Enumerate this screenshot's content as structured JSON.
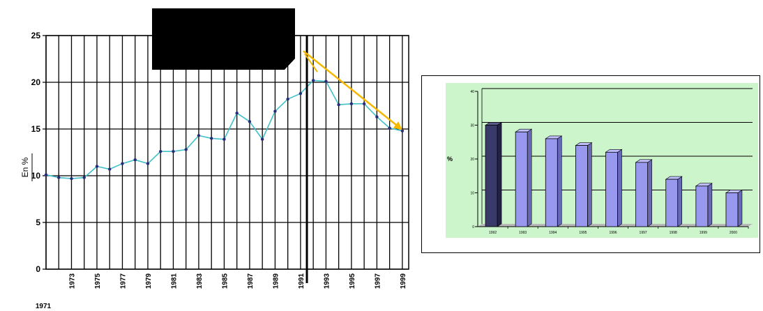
{
  "chart_data": [
    {
      "type": "line",
      "title": "",
      "xlabel": "",
      "ylabel": "En %",
      "ylim": [
        0,
        25
      ],
      "yticks": [
        "0",
        "5",
        "10",
        "15",
        "20",
        "25"
      ],
      "xticks": [
        "1971",
        "1973",
        "1975",
        "1977",
        "1979",
        "1981",
        "1983",
        "1985",
        "1987",
        "1989",
        "1991",
        "1993",
        "1995",
        "1997",
        "1999"
      ],
      "x": [
        1971,
        1972,
        1973,
        1974,
        1975,
        1976,
        1977,
        1978,
        1979,
        1980,
        1981,
        1982,
        1983,
        1984,
        1985,
        1986,
        1987,
        1988,
        1989,
        1990,
        1991,
        1992,
        1993,
        1994,
        1995,
        1996,
        1997,
        1998,
        1999
      ],
      "series": [
        {
          "values": [
            10.1,
            9.8,
            9.7,
            9.8,
            11.0,
            10.7,
            11.3,
            11.7,
            11.3,
            12.6,
            12.6,
            12.8,
            14.3,
            14.0,
            13.9,
            16.7,
            15.8,
            13.9,
            16.9,
            18.2,
            18.8,
            20.2,
            20.1,
            17.6,
            17.7,
            17.7,
            16.3,
            15.1,
            14.8
          ]
        }
      ],
      "grid": true,
      "vertical_marker_x": 1991.5,
      "trend_arrow": {
        "from": [
          1991,
          23.5
        ],
        "to": [
          1999,
          14.9
        ]
      },
      "colors": {
        "line": "#40c0c8",
        "points": "#2a2a7a",
        "arrow": "#f5b800",
        "redaction": "#000000"
      }
    },
    {
      "type": "bar",
      "title": "",
      "xlabel": "",
      "ylabel": "%",
      "ylim": [
        0,
        40
      ],
      "yticks": [
        "0",
        "10",
        "20",
        "30",
        "40"
      ],
      "categories": [
        "1992",
        "1993",
        "1994",
        "1995",
        "1996",
        "1997",
        "1998",
        "1999",
        "2000"
      ],
      "series": [
        {
          "values": [
            30,
            28,
            26,
            24,
            22,
            19,
            14,
            12,
            10
          ]
        }
      ],
      "colors": {
        "background": "#ccf5cc",
        "first_bar": "#3a3a6a",
        "bars": "#9898ee"
      }
    }
  ]
}
